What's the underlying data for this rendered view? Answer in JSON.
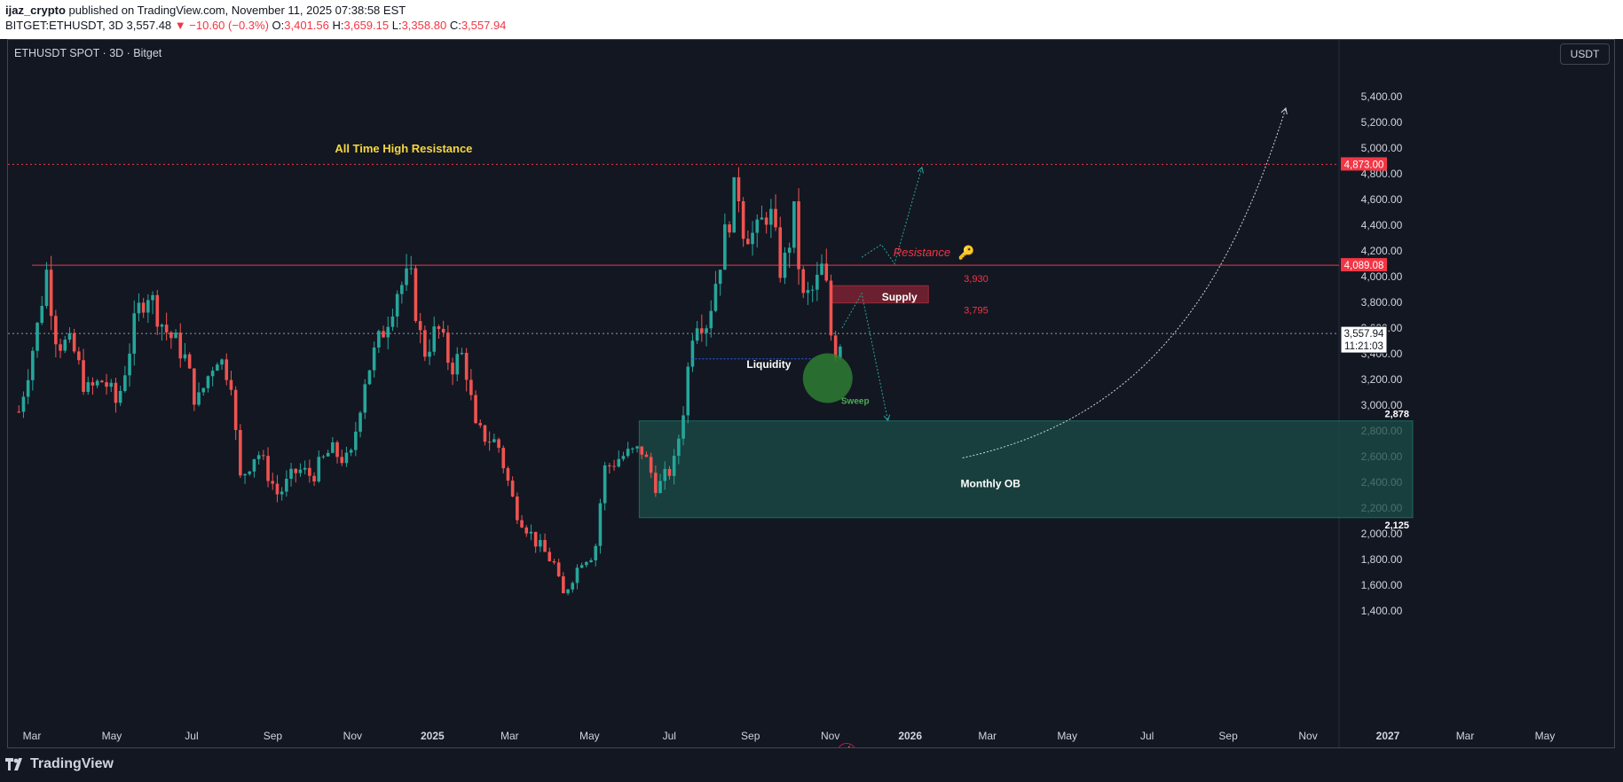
{
  "header": {
    "author": "ijaz_crypto",
    "published_text": " published on TradingView.com, November 11, 2025 07:38:58 EST",
    "symbol": "BITGET:ETHUSDT, 3D",
    "last": "3,557.48",
    "change": "−10.60 (−0.3%)",
    "open_label": "O:",
    "open": "3,401.56",
    "high_label": "H:",
    "high": "3,659.15",
    "low_label": "L:",
    "low": "3,358.80",
    "close_label": "C:",
    "close": "3,557.94"
  },
  "chart_title": "ETHUSDT SPOT · 3D · Bitget",
  "currency": "USDT",
  "footer": {
    "brand": "TradingView"
  },
  "colors": {
    "up": "#26a69a",
    "down": "#ef5350",
    "resistance": "#f23645",
    "ob_zone": "#1b4d47",
    "supply_zone": "#7a2230",
    "annotation": "#f5d742"
  },
  "chart_data": {
    "type": "candlestick",
    "price_axis": {
      "min": 1300,
      "max": 5500,
      "ticks": [
        "5,400.00",
        "5,200.00",
        "5,000.00",
        "4,800.00",
        "4,600.00",
        "4,400.00",
        "4,200.00",
        "4,000.00",
        "3,800.00",
        "3,600.00",
        "3,400.00",
        "3,200.00",
        "3,000.00",
        "2,800.00",
        "2,600.00",
        "2,400.00",
        "2,200.00",
        "2,000.00",
        "1,800.00",
        "1,600.00",
        "1,400.00"
      ],
      "tick_values": [
        5400,
        5200,
        5000,
        4800,
        4600,
        4400,
        4200,
        4000,
        3800,
        3600,
        3400,
        3200,
        3000,
        2800,
        2600,
        2400,
        2200,
        2000,
        1800,
        1600,
        1400
      ]
    },
    "time_axis": {
      "labels": [
        "Mar",
        "May",
        "Jul",
        "Sep",
        "Nov",
        "2025",
        "Mar",
        "May",
        "Jul",
        "Sep",
        "Nov",
        "2026",
        "Mar",
        "May",
        "Jul",
        "Sep",
        "Nov",
        "2027",
        "Mar",
        "May"
      ],
      "months_since_start": [
        0,
        2,
        4,
        6,
        8,
        10,
        12,
        14,
        16,
        18,
        20,
        22,
        24,
        26,
        28,
        30,
        32,
        34,
        36,
        38
      ],
      "start": "2024-03",
      "end": "2027-05"
    },
    "price_series": [
      [
        "2024-02-20",
        2950
      ],
      [
        "2024-03-05",
        3600
      ],
      [
        "2024-03-12",
        4050
      ],
      [
        "2024-03-20",
        3500
      ],
      [
        "2024-04-01",
        3450
      ],
      [
        "2024-04-12",
        3100
      ],
      [
        "2024-04-25",
        3200
      ],
      [
        "2024-05-05",
        3000
      ],
      [
        "2024-05-20",
        3700
      ],
      [
        "2024-05-28",
        3900
      ],
      [
        "2024-06-10",
        3600
      ],
      [
        "2024-06-25",
        3400
      ],
      [
        "2024-07-05",
        3000
      ],
      [
        "2024-07-20",
        3400
      ],
      [
        "2024-08-01",
        3200
      ],
      [
        "2024-08-06",
        2400
      ],
      [
        "2024-08-20",
        2650
      ],
      [
        "2024-09-05",
        2300
      ],
      [
        "2024-09-20",
        2500
      ],
      [
        "2024-10-01",
        2450
      ],
      [
        "2024-10-15",
        2650
      ],
      [
        "2024-10-30",
        2550
      ],
      [
        "2024-11-10",
        3200
      ],
      [
        "2024-11-25",
        3600
      ],
      [
        "2024-12-05",
        3900
      ],
      [
        "2024-12-15",
        4000
      ],
      [
        "2024-12-25",
        3400
      ],
      [
        "2025-01-05",
        3600
      ],
      [
        "2025-01-15",
        3300
      ],
      [
        "2025-01-25",
        3400
      ],
      [
        "2025-02-03",
        2800
      ],
      [
        "2025-02-20",
        2700
      ],
      [
        "2025-03-05",
        2200
      ],
      [
        "2025-03-20",
        1950
      ],
      [
        "2025-04-05",
        1750
      ],
      [
        "2025-04-10",
        1500
      ],
      [
        "2025-04-25",
        1800
      ],
      [
        "2025-05-05",
        1850
      ],
      [
        "2025-05-12",
        2500
      ],
      [
        "2025-05-25",
        2600
      ],
      [
        "2025-06-10",
        2650
      ],
      [
        "2025-06-22",
        2350
      ],
      [
        "2025-07-05",
        2550
      ],
      [
        "2025-07-12",
        3000
      ],
      [
        "2025-07-20",
        3700
      ],
      [
        "2025-07-30",
        3650
      ],
      [
        "2025-08-10",
        4200
      ],
      [
        "2025-08-22",
        4750
      ],
      [
        "2025-08-26",
        4400
      ],
      [
        "2025-09-05",
        4300
      ],
      [
        "2025-09-15",
        4550
      ],
      [
        "2025-09-25",
        4000
      ],
      [
        "2025-10-05",
        4500
      ],
      [
        "2025-10-10",
        3800
      ],
      [
        "2025-10-20",
        3900
      ],
      [
        "2025-10-27",
        4100
      ],
      [
        "2025-11-03",
        3400
      ],
      [
        "2025-11-11",
        3557.94
      ]
    ],
    "horizontal_levels": [
      {
        "label": "4,873.00",
        "value": 4873,
        "style": "dotted"
      },
      {
        "label": "4,089.08",
        "value": 4089.08,
        "style": "solid"
      },
      {
        "label": "3,557.94",
        "value": 3557.94,
        "style": "dotted",
        "countdown": "11:21:03"
      }
    ],
    "zones": [
      {
        "name": "Supply",
        "top": 3930,
        "bottom": 3795,
        "top_label": "3,930",
        "bottom_label": "3,795",
        "start": "2025-11-01",
        "end": "2026-01-15"
      },
      {
        "name": "Monthly OB",
        "top": 2878,
        "bottom": 2125,
        "top_label": "2,878",
        "bottom_label": "2,125",
        "start": "2025-06-08",
        "end": "2027-01-20"
      }
    ],
    "annotations": [
      {
        "text": "All Time High Resistance",
        "date": "2024-12-10",
        "price": 4965
      },
      {
        "text": "Resistance",
        "date": "2026-01-10",
        "price": 4160
      },
      {
        "text": "Liquidity",
        "date": "2025-09-15",
        "price": 3290
      },
      {
        "text": "Sweep",
        "date": "2025-11-20",
        "price": 3010
      }
    ],
    "projections": [
      {
        "name": "bullish-path",
        "points": [
          [
            "2025-11-25",
            4150
          ],
          [
            "2025-12-10",
            4250
          ],
          [
            "2025-12-20",
            4100
          ],
          [
            "2026-01-10",
            4850
          ]
        ]
      },
      {
        "name": "bearish-path",
        "points": [
          [
            "2025-11-10",
            3600
          ],
          [
            "2025-11-25",
            3870
          ],
          [
            "2025-12-15",
            2880
          ]
        ]
      },
      {
        "name": "long-term-curve",
        "points": [
          [
            "2026-02-10",
            2590
          ],
          [
            "2026-07-01",
            2900
          ],
          [
            "2026-09-01",
            3900
          ],
          [
            "2026-10-15",
            5310
          ]
        ]
      }
    ],
    "liquidity_line": {
      "start": "2025-07-18",
      "end": "2025-10-20",
      "value": 3360
    },
    "sweep_circle": {
      "date": "2025-10-30",
      "price": 3210
    }
  }
}
